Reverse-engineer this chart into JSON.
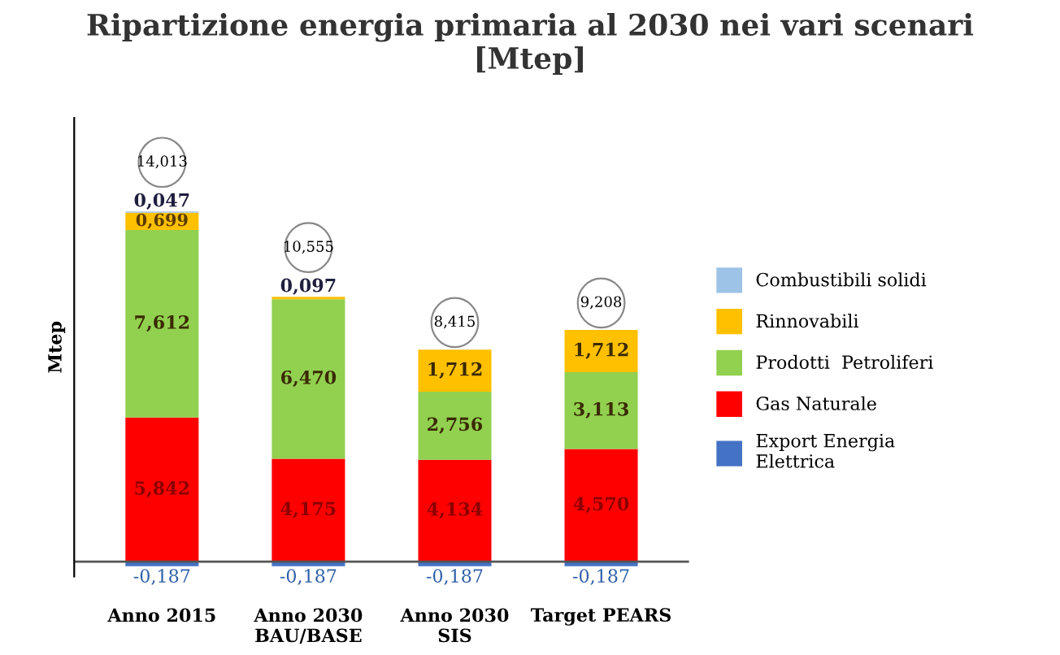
{
  "chart_data": {
    "type": "bar",
    "stacked": true,
    "title": "Ripartizione energia primaria al 2030 nei vari scenari\n[Mtep]",
    "ylabel": "Mtep",
    "categories": [
      "Anno 2015",
      "Anno 2030\nBAU/BASE",
      "Anno 2030\nSIS",
      "Target PEARS"
    ],
    "series": [
      {
        "name": "Export Energia\nElettrica",
        "color": "#4472c4",
        "values": [
          -0.187,
          -0.187,
          -0.187,
          -0.187
        ],
        "value_labels": [
          "-0,187",
          "-0,187",
          "-0,187",
          "-0,187"
        ]
      },
      {
        "name": "Gas Naturale",
        "color": "#ff0000",
        "values": [
          5.842,
          4.175,
          4.134,
          4.57
        ],
        "value_labels": [
          "5,842",
          "4,175",
          "4,134",
          "4,570"
        ]
      },
      {
        "name": "Prodotti  Petroliferi",
        "color": "#92d050",
        "values": [
          7.612,
          6.47,
          2.756,
          3.113
        ],
        "value_labels": [
          "7,612",
          "6,470",
          "2,756",
          "3,113"
        ]
      },
      {
        "name": "Rinnovabili",
        "color": "#ffc000",
        "values": [
          0.699,
          0.097,
          1.712,
          1.712
        ],
        "value_labels": [
          "0,699",
          "0,097",
          "1,712",
          "1,712"
        ]
      },
      {
        "name": "Combustibili solidi",
        "color": "#9dc3e6",
        "values": [
          0.047,
          null,
          null,
          null
        ],
        "value_labels": [
          "0,047",
          null,
          null,
          null
        ]
      }
    ],
    "totals": [
      "14,013",
      "10,555",
      "8,415",
      "9,208"
    ],
    "ylim": [
      -0.6,
      18
    ],
    "tick_labels": "x",
    "legend": "right",
    "grid": false
  }
}
